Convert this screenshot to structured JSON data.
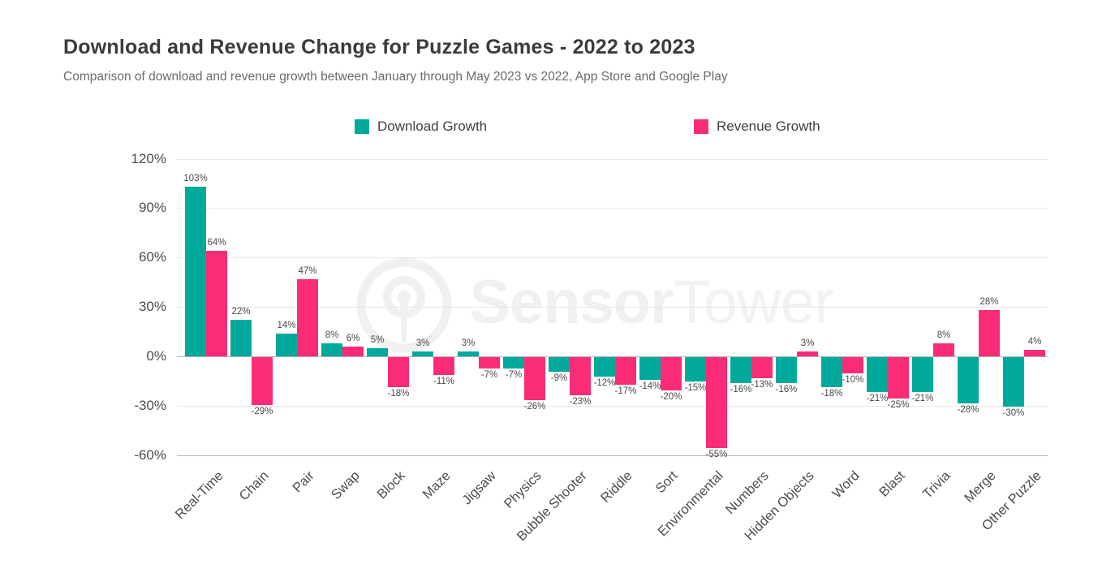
{
  "header": {
    "title": "Download and Revenue Change for Puzzle Games - 2022 to 2023",
    "subtitle": "Comparison of download and revenue growth between January through May 2023 vs 2022, App Store and Google Play"
  },
  "legend": {
    "items": [
      {
        "label": "Download Growth",
        "color": "#00a99c"
      },
      {
        "label": "Revenue Growth",
        "color": "#fa2c78"
      }
    ]
  },
  "watermark": {
    "brand_bold": "Sensor",
    "brand_light": "Tower",
    "logo": "sensortower-antenna-icon",
    "color": "#f0f0f0"
  },
  "chart_data": {
    "type": "bar",
    "title": "Download and Revenue Change for Puzzle Games - 2022 to 2023",
    "subtitle": "Comparison of download and revenue growth between January through May 2023 vs 2022, App Store and Google Play",
    "categories": [
      "Real-Time",
      "Chain",
      "Pair",
      "Swap",
      "Block",
      "Maze",
      "Jigsaw",
      "Physics",
      "Bubble Shooter",
      "Riddle",
      "Sort",
      "Environmental",
      "Numbers",
      "Hidden Objects",
      "Word",
      "Blast",
      "Trivia",
      "Merge",
      "Other Puzzle"
    ],
    "series": [
      {
        "name": "Download Growth",
        "color": "#00a99c",
        "values": [
          103,
          22,
          14,
          8,
          5,
          3,
          3,
          -7,
          -9,
          -12,
          -14,
          -15,
          -16,
          -16,
          -18,
          -21,
          -21,
          -28,
          -30
        ]
      },
      {
        "name": "Revenue Growth",
        "color": "#fa2c78",
        "values": [
          64,
          -29,
          47,
          6,
          -18,
          -11,
          -7,
          -26,
          -23,
          -17,
          -20,
          -55,
          -13,
          3,
          -10,
          -25,
          8,
          28,
          4
        ]
      }
    ],
    "value_suffix": "%",
    "xlabel": "",
    "ylabel": "",
    "y_ticks": [
      120,
      90,
      60,
      30,
      0,
      -30,
      -60
    ],
    "y_tick_suffix": "%",
    "ylim": [
      -60,
      120
    ],
    "grid": "horizontal",
    "legend_position": "top",
    "colors": {
      "grid_minor": "#e8e8e8",
      "grid_zero": "#b3b3b3",
      "grid_bottom": "#b3b3b3",
      "label_text": "#4a4a4a",
      "tick_text": "#4d4d4d"
    }
  }
}
